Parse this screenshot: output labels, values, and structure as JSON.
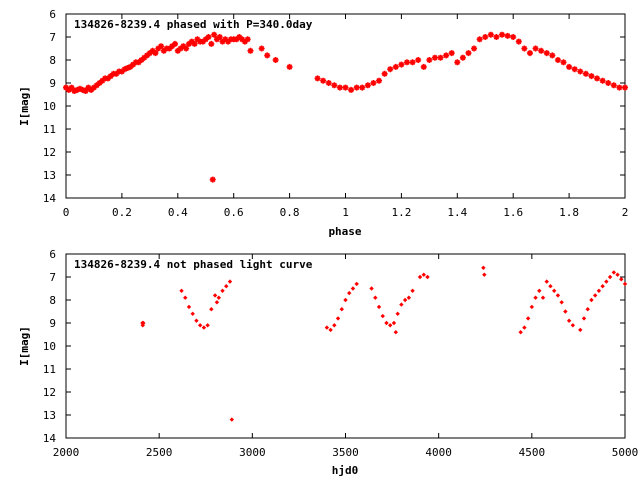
{
  "chart_data": [
    {
      "type": "scatter",
      "title": "134826-8239.4 phased with P=340.0day",
      "xlabel": "phase",
      "ylabel": "I[mag]",
      "xlim": [
        0,
        2
      ],
      "ylim": [
        14,
        6
      ],
      "y_inverted": true,
      "x_ticks": [
        0,
        0.2,
        0.4,
        0.6,
        0.8,
        1,
        1.2,
        1.4,
        1.6,
        1.8,
        2
      ],
      "y_ticks": [
        6,
        7,
        8,
        9,
        10,
        11,
        12,
        13,
        14
      ],
      "marker": "star",
      "color": "#ff0000",
      "grid": false,
      "series": [
        {
          "points": [
            [
              0.0,
              9.2
            ],
            [
              0.01,
              9.3
            ],
            [
              0.02,
              9.2
            ],
            [
              0.03,
              9.35
            ],
            [
              0.04,
              9.3
            ],
            [
              0.05,
              9.25
            ],
            [
              0.06,
              9.3
            ],
            [
              0.07,
              9.35
            ],
            [
              0.08,
              9.2
            ],
            [
              0.09,
              9.3
            ],
            [
              0.1,
              9.2
            ],
            [
              0.11,
              9.1
            ],
            [
              0.12,
              9.0
            ],
            [
              0.13,
              8.9
            ],
            [
              0.14,
              8.8
            ],
            [
              0.15,
              8.8
            ],
            [
              0.16,
              8.7
            ],
            [
              0.17,
              8.6
            ],
            [
              0.18,
              8.6
            ],
            [
              0.19,
              8.5
            ],
            [
              0.2,
              8.5
            ],
            [
              0.21,
              8.4
            ],
            [
              0.22,
              8.35
            ],
            [
              0.23,
              8.3
            ],
            [
              0.24,
              8.2
            ],
            [
              0.25,
              8.1
            ],
            [
              0.26,
              8.1
            ],
            [
              0.27,
              8.0
            ],
            [
              0.28,
              7.9
            ],
            [
              0.29,
              7.8
            ],
            [
              0.3,
              7.7
            ],
            [
              0.31,
              7.6
            ],
            [
              0.32,
              7.7
            ],
            [
              0.33,
              7.5
            ],
            [
              0.34,
              7.4
            ],
            [
              0.35,
              7.6
            ],
            [
              0.36,
              7.5
            ],
            [
              0.37,
              7.5
            ],
            [
              0.38,
              7.4
            ],
            [
              0.39,
              7.3
            ],
            [
              0.4,
              7.6
            ],
            [
              0.41,
              7.5
            ],
            [
              0.42,
              7.4
            ],
            [
              0.43,
              7.5
            ],
            [
              0.44,
              7.3
            ],
            [
              0.45,
              7.2
            ],
            [
              0.46,
              7.3
            ],
            [
              0.47,
              7.1
            ],
            [
              0.48,
              7.2
            ],
            [
              0.49,
              7.2
            ],
            [
              0.5,
              7.1
            ],
            [
              0.51,
              7.0
            ],
            [
              0.52,
              7.3
            ],
            [
              0.53,
              6.9
            ],
            [
              0.54,
              7.1
            ],
            [
              0.55,
              7.0
            ],
            [
              0.56,
              7.2
            ],
            [
              0.57,
              7.1
            ],
            [
              0.58,
              7.2
            ],
            [
              0.59,
              7.1
            ],
            [
              0.6,
              7.1
            ],
            [
              0.61,
              7.1
            ],
            [
              0.62,
              7.0
            ],
            [
              0.63,
              7.1
            ],
            [
              0.64,
              7.2
            ],
            [
              0.65,
              7.1
            ],
            [
              0.66,
              7.6
            ],
            [
              0.7,
              7.5
            ],
            [
              0.72,
              7.8
            ],
            [
              0.75,
              8.0
            ],
            [
              0.8,
              8.3
            ],
            [
              0.9,
              8.8
            ],
            [
              0.92,
              8.9
            ],
            [
              0.94,
              9.0
            ],
            [
              0.96,
              9.1
            ],
            [
              0.98,
              9.2
            ],
            [
              1.0,
              9.2
            ],
            [
              1.02,
              9.3
            ],
            [
              1.04,
              9.2
            ],
            [
              1.06,
              9.2
            ],
            [
              1.08,
              9.1
            ],
            [
              1.1,
              9.0
            ],
            [
              1.12,
              8.9
            ],
            [
              1.14,
              8.6
            ],
            [
              1.16,
              8.4
            ],
            [
              1.18,
              8.3
            ],
            [
              1.2,
              8.2
            ],
            [
              1.22,
              8.1
            ],
            [
              1.24,
              8.1
            ],
            [
              1.26,
              8.0
            ],
            [
              1.28,
              8.3
            ],
            [
              1.3,
              8.0
            ],
            [
              1.32,
              7.9
            ],
            [
              1.34,
              7.9
            ],
            [
              1.36,
              7.8
            ],
            [
              1.38,
              7.7
            ],
            [
              1.4,
              8.1
            ],
            [
              1.42,
              7.9
            ],
            [
              1.44,
              7.7
            ],
            [
              1.46,
              7.5
            ],
            [
              1.48,
              7.1
            ],
            [
              1.5,
              7.0
            ],
            [
              1.52,
              6.9
            ],
            [
              1.54,
              7.0
            ],
            [
              1.56,
              6.9
            ],
            [
              1.58,
              6.95
            ],
            [
              1.6,
              7.0
            ],
            [
              1.62,
              7.2
            ],
            [
              1.64,
              7.5
            ],
            [
              1.66,
              7.7
            ],
            [
              1.68,
              7.5
            ],
            [
              1.7,
              7.6
            ],
            [
              1.72,
              7.7
            ],
            [
              1.74,
              7.8
            ],
            [
              1.76,
              8.0
            ],
            [
              1.78,
              8.1
            ],
            [
              1.8,
              8.3
            ],
            [
              1.82,
              8.4
            ],
            [
              1.84,
              8.5
            ],
            [
              1.86,
              8.6
            ],
            [
              1.88,
              8.7
            ],
            [
              1.9,
              8.8
            ],
            [
              1.92,
              8.9
            ],
            [
              1.94,
              9.0
            ],
            [
              1.96,
              9.1
            ],
            [
              1.98,
              9.2
            ],
            [
              2.0,
              9.2
            ],
            [
              0.525,
              13.2
            ]
          ]
        }
      ]
    },
    {
      "type": "scatter",
      "title": "134826-8239.4 not phased light curve",
      "xlabel": "hjd0",
      "ylabel": "I[mag]",
      "xlim": [
        2000,
        5000
      ],
      "ylim": [
        14,
        6
      ],
      "y_inverted": true,
      "x_ticks": [
        2000,
        2500,
        3000,
        3500,
        4000,
        4500,
        5000
      ],
      "y_ticks": [
        6,
        7,
        8,
        9,
        10,
        11,
        12,
        13,
        14
      ],
      "marker": "diamond",
      "color": "#ff0000",
      "grid": false,
      "series": [
        {
          "points": [
            [
              2410,
              9.0
            ],
            [
              2412,
              9.1
            ],
            [
              2415,
              9.0
            ],
            [
              2620,
              7.6
            ],
            [
              2640,
              7.9
            ],
            [
              2660,
              8.3
            ],
            [
              2680,
              8.6
            ],
            [
              2700,
              8.9
            ],
            [
              2720,
              9.1
            ],
            [
              2740,
              9.2
            ],
            [
              2760,
              9.1
            ],
            [
              2780,
              8.4
            ],
            [
              2800,
              7.8
            ],
            [
              2810,
              8.1
            ],
            [
              2820,
              7.9
            ],
            [
              2840,
              7.6
            ],
            [
              2860,
              7.4
            ],
            [
              2880,
              7.2
            ],
            [
              2890,
              13.2
            ],
            [
              3400,
              9.2
            ],
            [
              3420,
              9.3
            ],
            [
              3440,
              9.1
            ],
            [
              3460,
              8.8
            ],
            [
              3480,
              8.4
            ],
            [
              3500,
              8.0
            ],
            [
              3520,
              7.7
            ],
            [
              3540,
              7.5
            ],
            [
              3560,
              7.3
            ],
            [
              3640,
              7.5
            ],
            [
              3660,
              7.9
            ],
            [
              3680,
              8.3
            ],
            [
              3700,
              8.7
            ],
            [
              3720,
              9.0
            ],
            [
              3740,
              9.1
            ],
            [
              3760,
              9.0
            ],
            [
              3770,
              9.4
            ],
            [
              3780,
              8.6
            ],
            [
              3800,
              8.2
            ],
            [
              3820,
              8.0
            ],
            [
              3840,
              7.9
            ],
            [
              3860,
              7.6
            ],
            [
              3900,
              7.0
            ],
            [
              3920,
              6.9
            ],
            [
              3940,
              7.0
            ],
            [
              4240,
              6.6
            ],
            [
              4245,
              6.9
            ],
            [
              4440,
              9.4
            ],
            [
              4460,
              9.2
            ],
            [
              4480,
              8.8
            ],
            [
              4500,
              8.3
            ],
            [
              4520,
              7.9
            ],
            [
              4540,
              7.6
            ],
            [
              4560,
              7.9
            ],
            [
              4580,
              7.2
            ],
            [
              4600,
              7.4
            ],
            [
              4620,
              7.6
            ],
            [
              4640,
              7.8
            ],
            [
              4660,
              8.1
            ],
            [
              4680,
              8.5
            ],
            [
              4700,
              8.9
            ],
            [
              4720,
              9.1
            ],
            [
              4760,
              9.3
            ],
            [
              4780,
              8.8
            ],
            [
              4800,
              8.4
            ],
            [
              4820,
              8.0
            ],
            [
              4840,
              7.8
            ],
            [
              4860,
              7.6
            ],
            [
              4880,
              7.4
            ],
            [
              4900,
              7.2
            ],
            [
              4920,
              7.0
            ],
            [
              4940,
              6.8
            ],
            [
              4960,
              6.9
            ],
            [
              4980,
              7.1
            ],
            [
              5000,
              7.3
            ]
          ]
        }
      ]
    }
  ]
}
